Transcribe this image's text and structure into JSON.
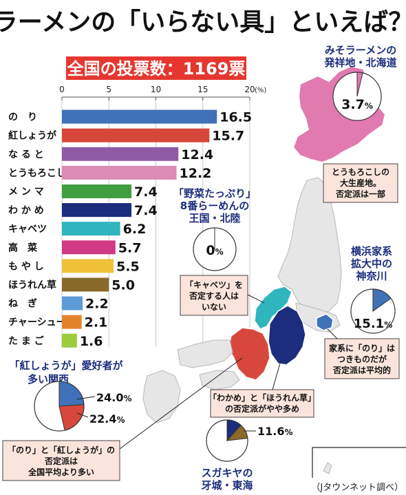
{
  "title": "ラーメンの「いらない具」といえば？",
  "total_label": "全国の投票数：1169票",
  "source": "（Jタウンネット調べ）",
  "chart_data": {
    "type": "bar",
    "orientation": "horizontal",
    "unit": "(%)",
    "xlim": [
      0,
      20
    ],
    "ticks": [
      0,
      5,
      10,
      15,
      20
    ],
    "categories": [
      "の　り",
      "紅しょうが",
      "な る と",
      "とうもろこし",
      "メ ン マ",
      "わ か め",
      "キャベツ",
      "高　菜",
      "も や し",
      "ほうれん草",
      "ね　ぎ",
      "チャーシュー",
      "た ま ご"
    ],
    "values": [
      16.5,
      15.7,
      12.4,
      12.2,
      7.4,
      7.4,
      6.2,
      5.7,
      5.5,
      5.0,
      2.2,
      2.1,
      1.6
    ],
    "value_labels": [
      "16.5",
      "15.7",
      "12.4",
      "12.2",
      "7.4",
      "7.4",
      "6.2",
      "5.7",
      "5.5",
      "5.0",
      "2.2",
      "2.1",
      "1.6"
    ],
    "colors": [
      "#3f72b8",
      "#d8473b",
      "#8e5aa6",
      "#dd8ab4",
      "#3f9e3f",
      "#1b2d7c",
      "#2fb5be",
      "#d03a86",
      "#f0c23a",
      "#8a6a2a",
      "#5b9bd8",
      "#e4822b",
      "#9ccc3c"
    ]
  },
  "regions": {
    "hokkaido": {
      "title_lines": [
        "みそラーメンの",
        "発祥地・北海道"
      ],
      "value": 3.7,
      "value_label": "3.7",
      "note_lines": [
        "とうもろこしの",
        "大生産地。",
        "否定派は一部"
      ],
      "color": "#e07aaf"
    },
    "hokuriku": {
      "title_lines": [
        "「野菜たっぷり」",
        "8番らーめんの",
        "王国・北陸"
      ],
      "value": 0,
      "value_label": "0",
      "note_lines": [
        "「キャベツ」を",
        "否定する人は",
        "いない"
      ],
      "color": "#2fb5be"
    },
    "kanagawa": {
      "title_lines": [
        "横浜家系",
        "拡大中の",
        "神奈川"
      ],
      "value": 15.1,
      "value_label": "15.1",
      "note_lines": [
        "家系に「のり」は",
        "つきものだが",
        "否定派は平均的"
      ],
      "color": "#3f72b8"
    },
    "kansai": {
      "title_lines": [
        "「紅しょうが」愛好者が",
        "多い関西"
      ],
      "values": [
        24.0,
        22.4
      ],
      "value_labels": [
        "24.0",
        "22.4"
      ],
      "note_lines": [
        "「のり」と「紅しょうが」の",
        "否定派は",
        "全国平均より多い"
      ],
      "colors": [
        "#3f72b8",
        "#d8473b"
      ]
    },
    "tokai": {
      "title_lines": [
        "スガキヤの",
        "牙城・東海"
      ],
      "values": [
        11.6,
        11.6
      ],
      "value_label": "11.6",
      "note_lines": [
        "「わかめ」と「ほうれん草」",
        "の否定派がやや多め"
      ],
      "colors": [
        "#1b2d7c",
        "#8a6a2a"
      ]
    }
  },
  "pct_sign": "%"
}
